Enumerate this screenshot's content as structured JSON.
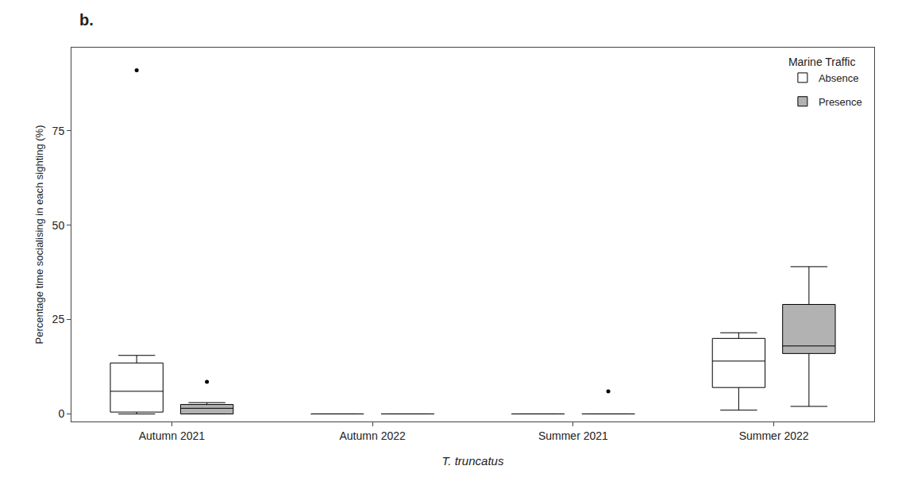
{
  "chart_data": {
    "type": "box",
    "title": "b.",
    "x_label": "T. truncatus",
    "y_label": "Percentage time socialising in each sighting (%)",
    "categories": [
      "Autumn 2021",
      "Autumn 2022",
      "Summer 2021",
      "Summer 2022"
    ],
    "series": [
      {
        "name": "Absence",
        "color": "#ffffff",
        "values": [
          {
            "q1": 0.5,
            "median": 6.0,
            "q3": 13.5,
            "whisker_low": 0.0,
            "whisker_high": 15.5,
            "outliers": [
              91.0
            ]
          },
          {
            "q1": 0.0,
            "median": 0.0,
            "q3": 0.0,
            "whisker_low": 0.0,
            "whisker_high": 0.0,
            "outliers": []
          },
          {
            "q1": 0.0,
            "median": 0.0,
            "q3": 0.0,
            "whisker_low": 0.0,
            "whisker_high": 0.0,
            "outliers": []
          },
          {
            "q1": 7.0,
            "median": 14.0,
            "q3": 20.0,
            "whisker_low": 1.0,
            "whisker_high": 21.5,
            "outliers": []
          }
        ]
      },
      {
        "name": "Presence",
        "color": "#b2b2b2",
        "values": [
          {
            "q1": 0.0,
            "median": 1.5,
            "q3": 2.5,
            "whisker_low": 0.0,
            "whisker_high": 3.0,
            "outliers": [
              8.5
            ]
          },
          {
            "q1": 0.0,
            "median": 0.0,
            "q3": 0.0,
            "whisker_low": 0.0,
            "whisker_high": 0.0,
            "outliers": []
          },
          {
            "q1": 0.0,
            "median": 0.0,
            "q3": 0.0,
            "whisker_low": 0.0,
            "whisker_high": 0.0,
            "outliers": [
              6.0
            ]
          },
          {
            "q1": 16.0,
            "median": 18.0,
            "q3": 29.0,
            "whisker_low": 2.0,
            "whisker_high": 39.0,
            "outliers": []
          }
        ]
      }
    ],
    "legend_title": "Marine Traffic",
    "legend": "upper right",
    "ylim": [
      -2,
      97
    ],
    "yticks": [
      0,
      25,
      50,
      75
    ],
    "grid": false
  }
}
